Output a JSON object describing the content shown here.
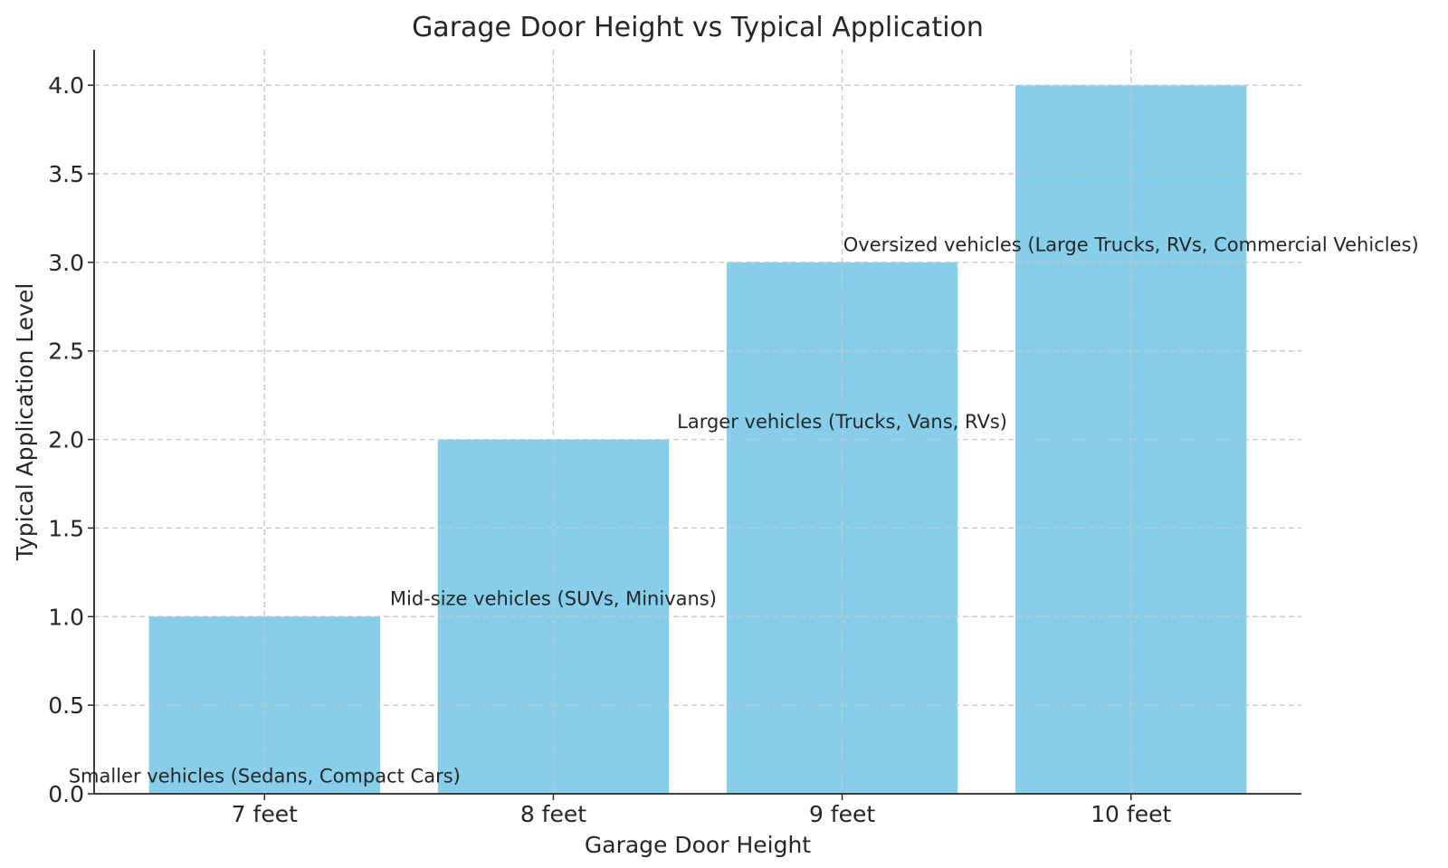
{
  "chart_data": {
    "type": "bar",
    "title": "Garage Door Height vs Typical Application",
    "xlabel": "Garage Door Height",
    "ylabel": "Typical Application Level",
    "categories": [
      "7 feet",
      "8 feet",
      "9 feet",
      "10 feet"
    ],
    "values": [
      1,
      2,
      3,
      4
    ],
    "annotations": [
      "Smaller vehicles (Sedans, Compact Cars)",
      "Mid-size vehicles (SUVs, Minivans)",
      "Larger vehicles (Trucks, Vans, RVs)",
      "Oversized vehicles (Large Trucks, RVs, Commercial Vehicles)"
    ],
    "ylim": [
      0,
      4.2
    ],
    "yticks": [
      "0.0",
      "0.5",
      "1.0",
      "1.5",
      "2.0",
      "2.5",
      "3.0",
      "3.5",
      "4.0"
    ],
    "ytick_values": [
      0,
      0.5,
      1,
      1.5,
      2,
      2.5,
      3,
      3.5,
      4
    ],
    "bar_color": "#87CEEB",
    "grid": true,
    "legend": "none"
  }
}
